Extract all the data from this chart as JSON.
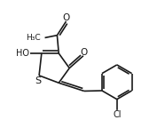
{
  "bg_color": "#ffffff",
  "line_color": "#1a1a1a",
  "line_width": 1.2,
  "font_size": 7.0,
  "figsize": [
    1.86,
    1.44
  ],
  "dpi": 100,
  "xlim": [
    0,
    10
  ],
  "ylim": [
    0,
    7.5
  ]
}
